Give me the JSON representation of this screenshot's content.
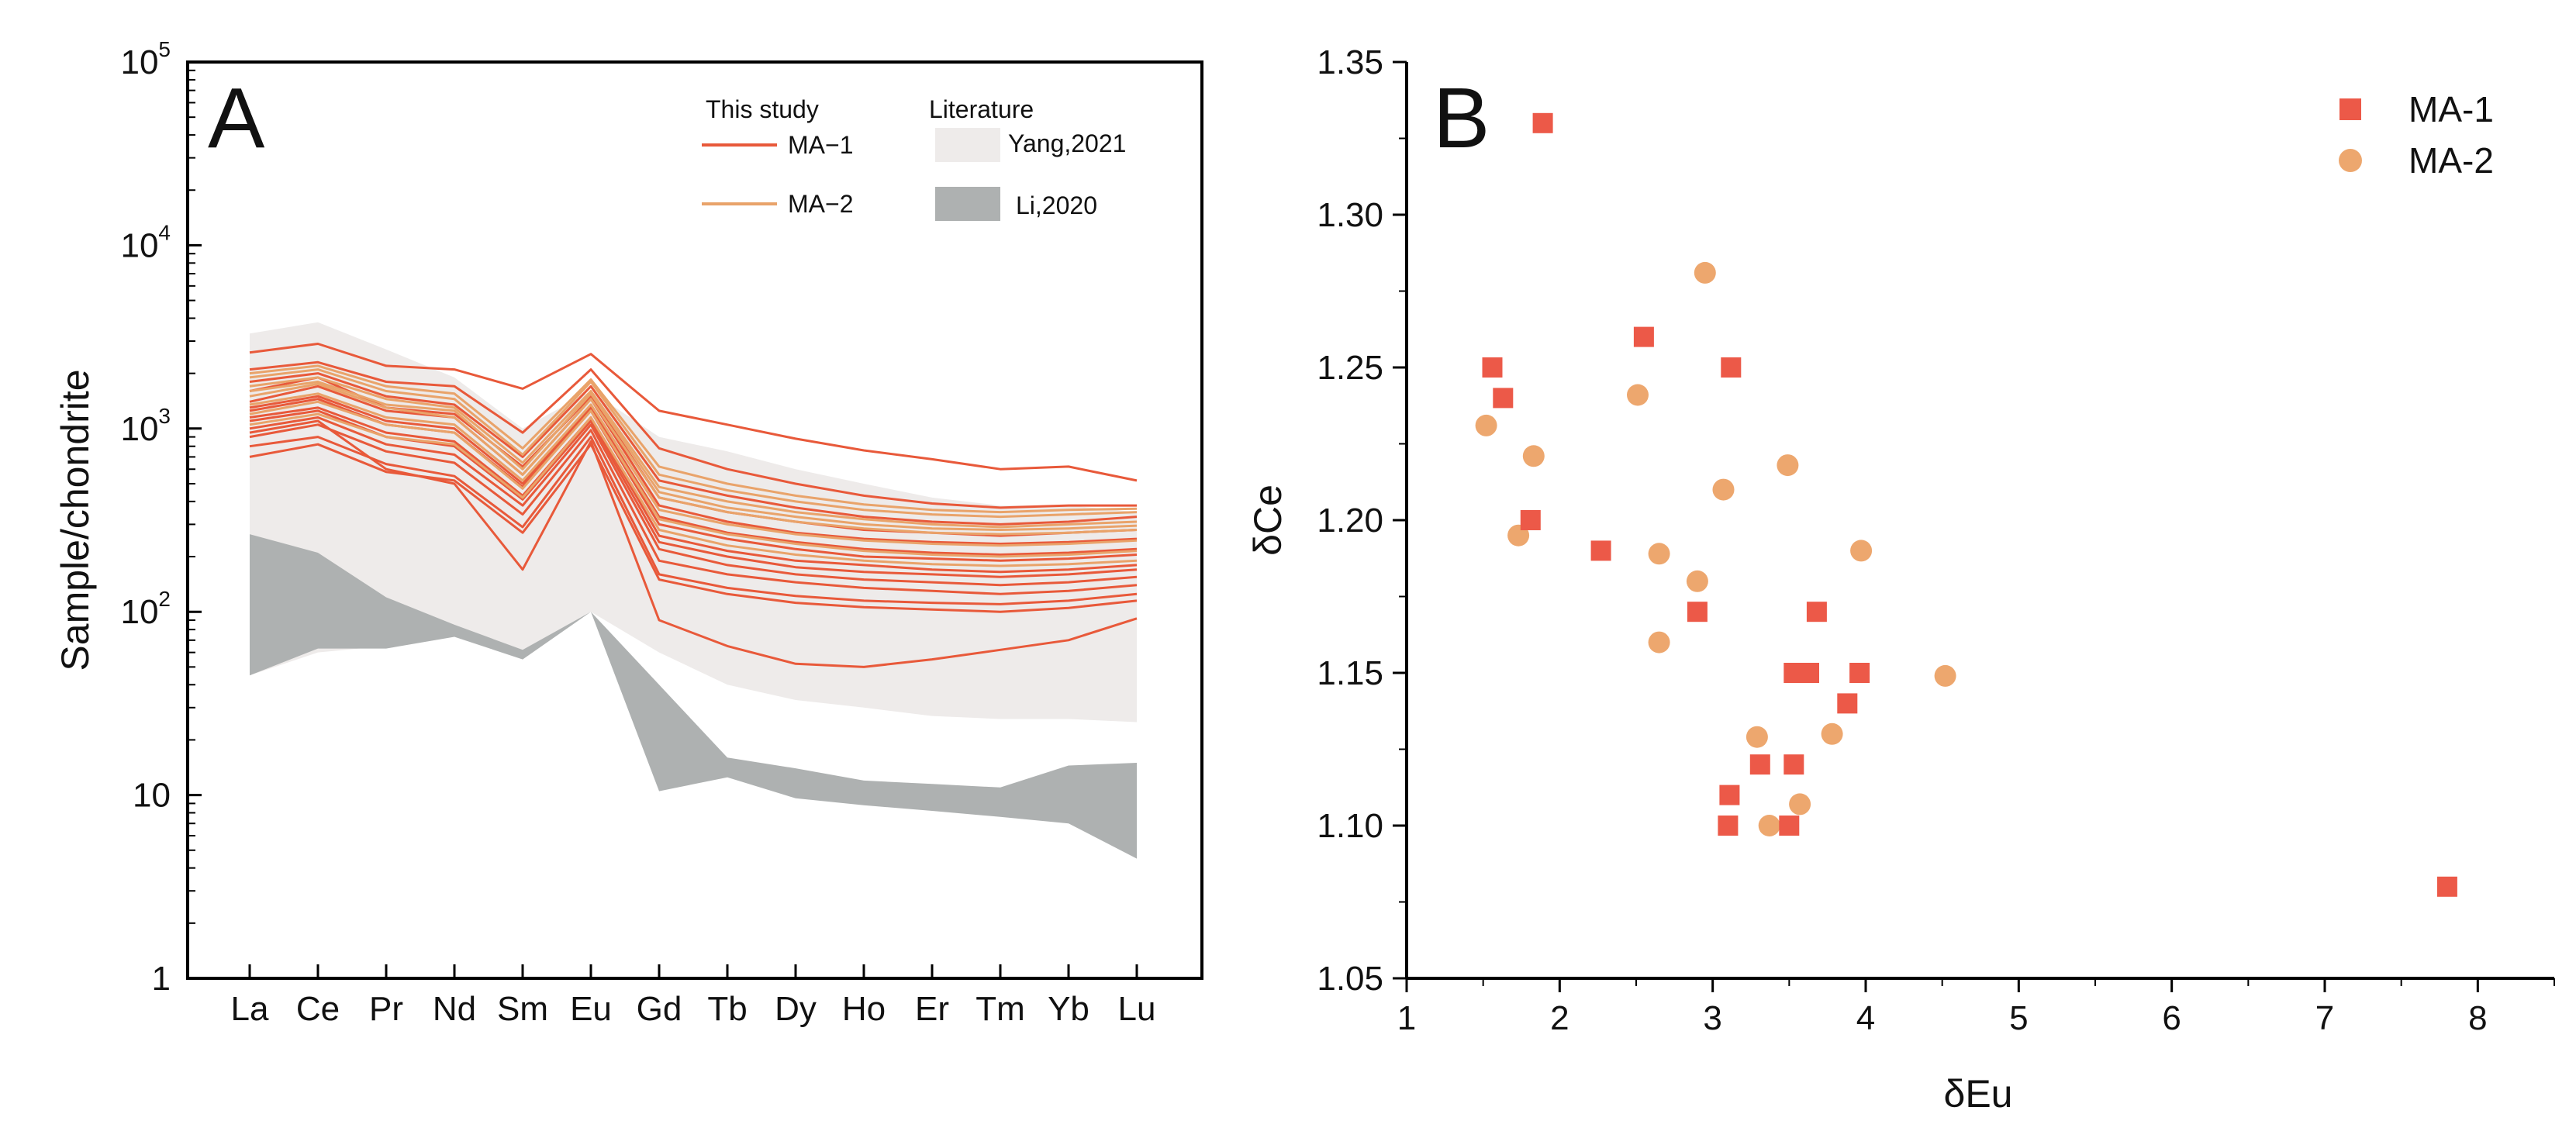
{
  "chart_data": [
    {
      "type": "line",
      "panel_label": "A",
      "title": "",
      "ylabel": "Sample/chondrite",
      "xlabel": "",
      "yscale": "log",
      "ylim": [
        1,
        100000
      ],
      "y_ticks": [
        {
          "base": "1",
          "exp": ""
        },
        {
          "base": "10",
          "exp": ""
        },
        {
          "base": "10",
          "exp": "2"
        },
        {
          "base": "10",
          "exp": "3"
        },
        {
          "base": "10",
          "exp": "4"
        },
        {
          "base": "10",
          "exp": "5"
        }
      ],
      "categories": [
        "La",
        "Ce",
        "Pr",
        "Nd",
        "Sm",
        "Eu",
        "Gd",
        "Tb",
        "Dy",
        "Ho",
        "Er",
        "Tm",
        "Yb",
        "Lu"
      ],
      "legend": {
        "this_study_heading": "This study",
        "literature_heading": "Literature",
        "entries": [
          {
            "label": "MA−1",
            "kind": "line",
            "color": "#E8593A"
          },
          {
            "label": "MA−2",
            "kind": "line",
            "color": "#E9A36A"
          },
          {
            "label": "Yang,2021",
            "kind": "area",
            "color": "#EEEBEA"
          },
          {
            "label": "Li,2020",
            "kind": "area",
            "color": "#AEB1B1"
          }
        ]
      },
      "literature_ranges": [
        {
          "name": "Yang,2021",
          "upper": [
            3300,
            3800,
            2700,
            1900,
            1000,
            1600,
            900,
            750,
            600,
            500,
            420,
            380,
            380,
            350
          ],
          "lower": [
            45,
            60,
            65,
            75,
            55,
            100,
            60,
            40,
            33,
            30,
            27,
            26,
            26,
            25
          ]
        },
        {
          "name": "Li,2020",
          "upper": [
            265,
            210,
            120,
            85,
            62,
            100,
            40,
            16,
            14,
            12,
            11.5,
            11,
            14.5,
            15
          ],
          "lower": [
            45,
            63,
            63,
            73,
            55,
            100,
            10.5,
            12.5,
            9.6,
            8.8,
            8.2,
            7.6,
            7,
            4.5
          ]
        }
      ],
      "series": [
        {
          "name": "MA-1",
          "values": [
            2600,
            2900,
            2200,
            2100,
            1650,
            2550,
            1250,
            1050,
            880,
            760,
            680,
            600,
            620,
            520
          ]
        },
        {
          "name": "MA-1",
          "values": [
            2100,
            2300,
            1800,
            1700,
            950,
            2100,
            780,
            600,
            500,
            430,
            390,
            370,
            380,
            380
          ]
        },
        {
          "name": "MA-1",
          "values": [
            1800,
            2000,
            1500,
            1350,
            700,
            1700,
            520,
            430,
            370,
            330,
            310,
            300,
            310,
            330
          ]
        },
        {
          "name": "MA-1",
          "values": [
            1600,
            1900,
            1300,
            1200,
            620,
            1500,
            420,
            350,
            310,
            280,
            270,
            260,
            270,
            280
          ]
        },
        {
          "name": "MA-1",
          "values": [
            1300,
            1500,
            1100,
            1000,
            500,
            1300,
            330,
            270,
            240,
            220,
            210,
            205,
            210,
            220
          ]
        },
        {
          "name": "MA-1",
          "values": [
            1150,
            1300,
            950,
            850,
            430,
            1150,
            260,
            215,
            190,
            180,
            170,
            165,
            170,
            180
          ]
        },
        {
          "name": "MA-1",
          "values": [
            1000,
            1150,
            820,
            720,
            380,
            1050,
            220,
            180,
            160,
            150,
            145,
            140,
            145,
            155
          ]
        },
        {
          "name": "MA-1",
          "values": [
            900,
            1050,
            750,
            650,
            340,
            980,
            190,
            160,
            145,
            135,
            130,
            125,
            130,
            140
          ]
        },
        {
          "name": "MA-1",
          "values": [
            800,
            900,
            640,
            550,
            290,
            900,
            160,
            135,
            122,
            115,
            112,
            110,
            115,
            125
          ]
        },
        {
          "name": "MA-1",
          "values": [
            950,
            1100,
            600,
            500,
            170,
            850,
            90,
            65,
            52,
            50,
            55,
            62,
            70,
            92
          ]
        },
        {
          "name": "MA-1",
          "values": [
            1400,
            1700,
            1250,
            1150,
            560,
            1450,
            380,
            310,
            270,
            250,
            240,
            235,
            240,
            250
          ]
        },
        {
          "name": "MA-1",
          "values": [
            1100,
            1250,
            900,
            800,
            410,
            1100,
            240,
            200,
            175,
            165,
            160,
            155,
            160,
            170
          ]
        },
        {
          "name": "MA-1",
          "values": [
            700,
            820,
            580,
            520,
            270,
            820,
            150,
            125,
            112,
            106,
            103,
            100,
            105,
            115
          ]
        },
        {
          "name": "MA-1",
          "values": [
            1250,
            1450,
            1050,
            950,
            480,
            1250,
            300,
            250,
            220,
            200,
            195,
            190,
            195,
            205
          ]
        },
        {
          "name": "MA-2",
          "values": [
            1700,
            1900,
            1450,
            1300,
            650,
            1600,
            480,
            400,
            350,
            320,
            300,
            290,
            300,
            310
          ]
        },
        {
          "name": "MA-2",
          "values": [
            1500,
            1750,
            1300,
            1150,
            560,
            1450,
            420,
            350,
            310,
            285,
            270,
            265,
            270,
            280
          ]
        },
        {
          "name": "MA-2",
          "values": [
            1900,
            2100,
            1600,
            1450,
            720,
            1800,
            560,
            460,
            400,
            360,
            340,
            330,
            340,
            350
          ]
        },
        {
          "name": "MA-2",
          "values": [
            1350,
            1550,
            1150,
            1050,
            520,
            1350,
            360,
            300,
            265,
            245,
            235,
            230,
            235,
            245
          ]
        },
        {
          "name": "MA-2",
          "values": [
            1200,
            1400,
            1050,
            950,
            470,
            1250,
            320,
            265,
            235,
            215,
            205,
            200,
            205,
            215
          ]
        },
        {
          "name": "MA-2",
          "values": [
            1600,
            1800,
            1350,
            1250,
            600,
            1550,
            450,
            370,
            330,
            300,
            285,
            280,
            285,
            295
          ]
        },
        {
          "name": "MA-2",
          "values": [
            1050,
            1200,
            900,
            820,
            420,
            1150,
            280,
            230,
            205,
            190,
            182,
            178,
            182,
            190
          ]
        },
        {
          "name": "MA-2",
          "values": [
            2000,
            2200,
            1700,
            1550,
            780,
            1850,
            620,
            500,
            430,
            385,
            360,
            350,
            360,
            365
          ]
        }
      ]
    },
    {
      "type": "scatter",
      "panel_label": "B",
      "title": "",
      "xlabel": "δEu",
      "ylabel": "δCe",
      "xlim": [
        1,
        8.5
      ],
      "ylim": [
        1.05,
        1.35
      ],
      "x_ticks": [
        "1",
        "2",
        "3",
        "4",
        "5",
        "6",
        "7",
        "8"
      ],
      "y_ticks": [
        "1.05",
        "1.10",
        "1.15",
        "1.20",
        "1.25",
        "1.30",
        "1.35"
      ],
      "legend": [
        {
          "label": "MA-1",
          "marker": "square",
          "color": "#EC5948"
        },
        {
          "label": "MA-2",
          "marker": "circle",
          "color": "#EDA76E"
        }
      ],
      "series": [
        {
          "name": "MA-1",
          "points": [
            [
              1.89,
              1.33
            ],
            [
              1.56,
              1.25
            ],
            [
              1.63,
              1.24
            ],
            [
              1.81,
              1.2
            ],
            [
              2.27,
              1.19
            ],
            [
              2.55,
              1.26
            ],
            [
              3.12,
              1.25
            ],
            [
              2.9,
              1.17
            ],
            [
              3.68,
              1.17
            ],
            [
              3.53,
              1.15
            ],
            [
              3.63,
              1.15
            ],
            [
              3.96,
              1.15
            ],
            [
              3.88,
              1.14
            ],
            [
              3.31,
              1.12
            ],
            [
              3.53,
              1.12
            ],
            [
              3.11,
              1.11
            ],
            [
              3.1,
              1.1
            ],
            [
              3.5,
              1.1
            ],
            [
              7.8,
              1.08
            ]
          ]
        },
        {
          "name": "MA-2",
          "points": [
            [
              2.95,
              1.281
            ],
            [
              2.51,
              1.241
            ],
            [
              1.52,
              1.231
            ],
            [
              1.83,
              1.221
            ],
            [
              3.49,
              1.218
            ],
            [
              3.07,
              1.21
            ],
            [
              1.73,
              1.195
            ],
            [
              3.97,
              1.19
            ],
            [
              2.65,
              1.189
            ],
            [
              2.9,
              1.18
            ],
            [
              2.65,
              1.16
            ],
            [
              4.52,
              1.149
            ],
            [
              3.78,
              1.13
            ],
            [
              3.29,
              1.129
            ],
            [
              3.57,
              1.107
            ],
            [
              3.37,
              1.1
            ]
          ]
        }
      ]
    }
  ]
}
